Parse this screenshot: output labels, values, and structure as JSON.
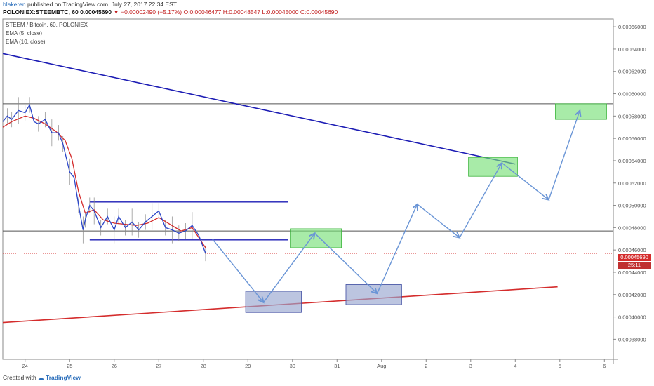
{
  "header": {
    "user": "blakeren",
    "published_text": "published on TradingView.com, July 27, 2017 22:34 EST",
    "symbol": "POLONIEX:STEEMBTC, 60",
    "last": "0.00045690",
    "change": "▼ −0.00002490 (−5.17%)",
    "ohlc": "O:0.00046477 H:0.00048547 L:0.00045000 C:0.00045690"
  },
  "legend": {
    "line1": "STEEM / Bitcoin, 60, POLONIEX",
    "line2": "EMA (5, close)",
    "line3": "EMA (10, close)"
  },
  "footer": {
    "created_with": "Created with",
    "brand": "TradingView"
  },
  "colors": {
    "price": "#2a45c8",
    "ema5": "#2a45c8",
    "ema10": "#d42c2c",
    "trendline_blue": "#1c1cb4",
    "trendline_red": "#d42c2c",
    "projection_arrow": "#6a95d6",
    "target_box_green": "#7ae07a",
    "target_box_blue": "#98a6d0",
    "horizontal_level": "#555555"
  },
  "chart_data": {
    "type": "line",
    "title": "STEEM / Bitcoin, 60, POLONIEX",
    "x_ticks": [
      "24",
      "25",
      "26",
      "27",
      "28",
      "29",
      "30",
      "31",
      "Aug",
      "2",
      "3",
      "4",
      "5",
      "6"
    ],
    "y_ticks": [
      "0.00038000",
      "0.00040000",
      "0.00042000",
      "0.00044000",
      "0.00046000",
      "0.00048000",
      "0.00050000",
      "0.00052000",
      "0.00054000",
      "0.00056000",
      "0.00058000",
      "0.00060000",
      "0.00062000",
      "0.00064000",
      "0.00066000"
    ],
    "ylim": [
      0.000362,
      0.000667
    ],
    "xlim": [
      23.5,
      37.2
    ],
    "current_price": "0.00045690",
    "current_price_value": 0.0004569,
    "countdown": "25:11",
    "ema_series_names": [
      "EMA (5, close)",
      "EMA (10, close)"
    ],
    "price_path": [
      [
        23.5,
        0.000575
      ],
      [
        23.6,
        0.00058
      ],
      [
        23.7,
        0.000577
      ],
      [
        23.85,
        0.000585
      ],
      [
        24.0,
        0.000583
      ],
      [
        24.1,
        0.00059
      ],
      [
        24.2,
        0.000575
      ],
      [
        24.3,
        0.000573
      ],
      [
        24.45,
        0.000577
      ],
      [
        24.6,
        0.000565
      ],
      [
        24.75,
        0.000565
      ],
      [
        24.85,
        0.000555
      ],
      [
        25.0,
        0.00053
      ],
      [
        25.1,
        0.000525
      ],
      [
        25.2,
        0.0005
      ],
      [
        25.3,
        0.000478
      ],
      [
        25.35,
        0.000487
      ],
      [
        25.45,
        0.0005
      ],
      [
        25.55,
        0.000495
      ],
      [
        25.7,
        0.00048
      ],
      [
        25.85,
        0.00049
      ],
      [
        26.0,
        0.000478
      ],
      [
        26.1,
        0.00049
      ],
      [
        26.25,
        0.00048
      ],
      [
        26.4,
        0.000485
      ],
      [
        26.55,
        0.000478
      ],
      [
        26.7,
        0.000485
      ],
      [
        26.85,
        0.00049
      ],
      [
        27.0,
        0.000495
      ],
      [
        27.15,
        0.00048
      ],
      [
        27.3,
        0.000478
      ],
      [
        27.45,
        0.000475
      ],
      [
        27.6,
        0.000477
      ],
      [
        27.75,
        0.000482
      ],
      [
        27.9,
        0.000473
      ],
      [
        28.05,
        0.000457
      ]
    ],
    "ema10_path": [
      [
        23.5,
        0.00057
      ],
      [
        23.7,
        0.000575
      ],
      [
        24.0,
        0.00058
      ],
      [
        24.2,
        0.000578
      ],
      [
        24.45,
        0.000573
      ],
      [
        24.7,
        0.000566
      ],
      [
        24.9,
        0.000558
      ],
      [
        25.05,
        0.000542
      ],
      [
        25.2,
        0.000512
      ],
      [
        25.35,
        0.000493
      ],
      [
        25.55,
        0.000496
      ],
      [
        25.75,
        0.000487
      ],
      [
        26.0,
        0.000484
      ],
      [
        26.25,
        0.000483
      ],
      [
        26.5,
        0.000482
      ],
      [
        26.75,
        0.000484
      ],
      [
        27.0,
        0.000489
      ],
      [
        27.25,
        0.000483
      ],
      [
        27.5,
        0.000477
      ],
      [
        27.75,
        0.00048
      ],
      [
        28.05,
        0.000462
      ]
    ],
    "horizontal_levels": [
      0.000591,
      0.000477
    ],
    "range_lines": [
      {
        "x1": 25.45,
        "x2": 29.9,
        "y": 0.000503
      },
      {
        "x1": 25.45,
        "x2": 29.9,
        "y": 0.000469
      }
    ],
    "trendlines": [
      {
        "name": "resistance",
        "x1": 23.5,
        "y1": 0.000636,
        "x2": 35.0,
        "y2": 0.000537
      },
      {
        "name": "support",
        "x1": 23.5,
        "y1": 0.000395,
        "x2": 35.95,
        "y2": 0.000427
      }
    ],
    "projection_path": [
      [
        28.2,
        0.00047
      ],
      [
        29.35,
        0.000413
      ],
      [
        30.5,
        0.000475
      ],
      [
        31.9,
        0.000421
      ],
      [
        32.8,
        0.000501
      ],
      [
        33.75,
        0.000471
      ],
      [
        34.7,
        0.000538
      ],
      [
        35.75,
        0.000505
      ],
      [
        36.45,
        0.000585
      ]
    ],
    "target_boxes": [
      {
        "kind": "blue",
        "x1": 28.95,
        "x2": 30.2,
        "y1": 0.000404,
        "y2": 0.000423
      },
      {
        "kind": "green",
        "x1": 29.95,
        "x2": 31.1,
        "y1": 0.000462,
        "y2": 0.000479
      },
      {
        "kind": "blue",
        "x1": 31.2,
        "x2": 32.45,
        "y1": 0.000411,
        "y2": 0.000429
      },
      {
        "kind": "green",
        "x1": 33.95,
        "x2": 35.05,
        "y1": 0.000526,
        "y2": 0.000543
      },
      {
        "kind": "green",
        "x1": 35.9,
        "x2": 37.05,
        "y1": 0.000577,
        "y2": 0.000591
      }
    ]
  }
}
